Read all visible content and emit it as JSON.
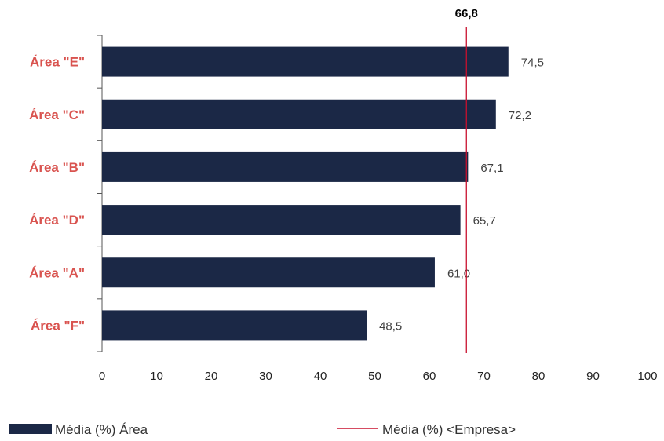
{
  "chart_data": {
    "type": "bar",
    "orientation": "horizontal",
    "categories": [
      "Área \"E\"",
      "Área \"C\"",
      "Área \"B\"",
      "Área \"D\"",
      "Área \"A\"",
      "Área \"F\""
    ],
    "value_labels": [
      "74,5",
      "72,2",
      "67,1",
      "65,7",
      "61,0",
      "48,5"
    ],
    "series": [
      {
        "name": "Média (%) Área",
        "values": [
          74.5,
          72.2,
          67.1,
          65.7,
          61.0,
          48.5
        ],
        "color": "#1b2846"
      }
    ],
    "reference_line": {
      "name": "Média (%) <Empresa>",
      "value": 66.8,
      "label": "66,8",
      "color": "#c8102e"
    },
    "xlim": [
      0,
      100
    ],
    "xticks": [
      0,
      10,
      20,
      30,
      40,
      50,
      60,
      70,
      80,
      90,
      100
    ],
    "category_label_color": "#d9534f",
    "grid": false,
    "legend_position": "bottom"
  }
}
